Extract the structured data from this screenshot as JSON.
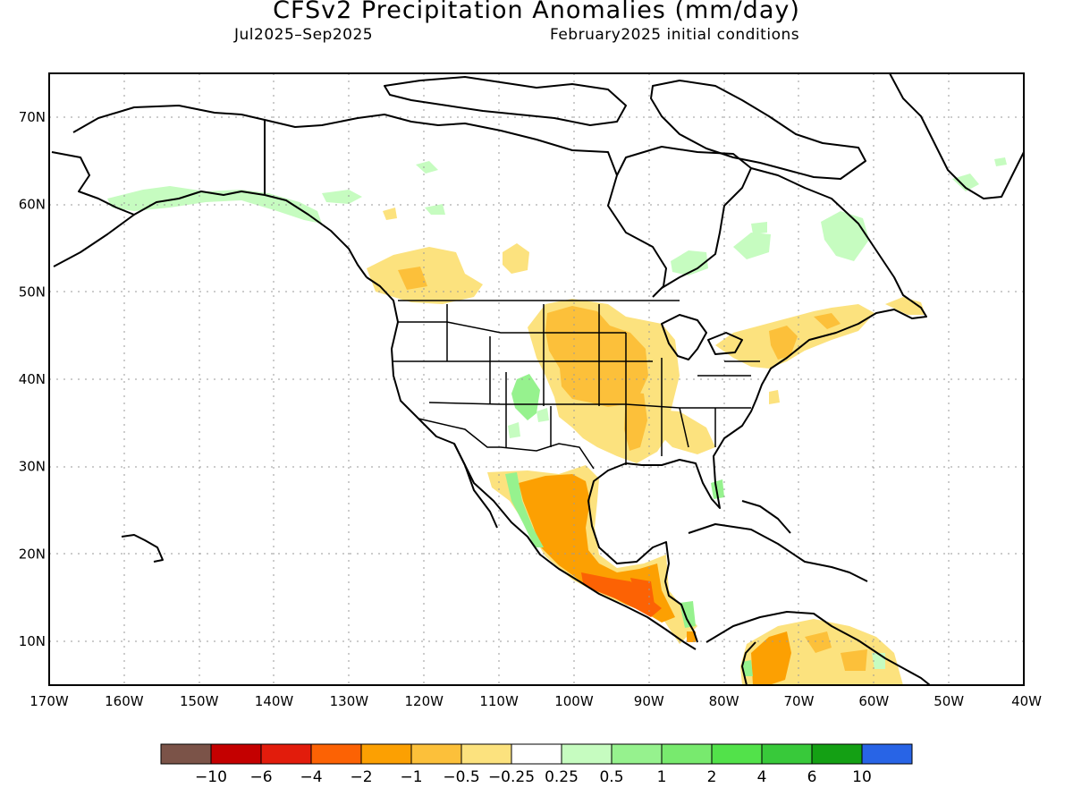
{
  "title": "CFSv2 Precipitation Anomalies (mm/day)",
  "period": "Jul2025–Sep2025",
  "initial_conditions": "February2025 initial conditions",
  "map": {
    "lon_range": [
      -170,
      -40
    ],
    "lat_range": [
      5,
      75
    ],
    "lon_ticks": [
      {
        "value": -170,
        "label": "170W"
      },
      {
        "value": -160,
        "label": "160W"
      },
      {
        "value": -150,
        "label": "150W"
      },
      {
        "value": -140,
        "label": "140W"
      },
      {
        "value": -130,
        "label": "130W"
      },
      {
        "value": -120,
        "label": "120W"
      },
      {
        "value": -110,
        "label": "110W"
      },
      {
        "value": -100,
        "label": "100W"
      },
      {
        "value": -90,
        "label": "90W"
      },
      {
        "value": -80,
        "label": "80W"
      },
      {
        "value": -70,
        "label": "70W"
      },
      {
        "value": -60,
        "label": "60W"
      },
      {
        "value": -50,
        "label": "50W"
      },
      {
        "value": -40,
        "label": "40W"
      }
    ],
    "lat_ticks": [
      {
        "value": 70,
        "label": "70N"
      },
      {
        "value": 60,
        "label": "60N"
      },
      {
        "value": 50,
        "label": "50N"
      },
      {
        "value": 40,
        "label": "40N"
      },
      {
        "value": 30,
        "label": "30N"
      },
      {
        "value": 20,
        "label": "20N"
      },
      {
        "value": 10,
        "label": "10N"
      }
    ],
    "grid": true
  },
  "colorbar": {
    "colors": [
      "#7b5348",
      "#c40000",
      "#e21c0c",
      "#fc6204",
      "#fca002",
      "#fcc03a",
      "#fce27e",
      "#ffffff",
      "#c6fcc0",
      "#96f28e",
      "#78ea6e",
      "#52e24a",
      "#38c93a",
      "#14a014",
      "#2864e6"
    ],
    "labels": [
      "−10",
      "−6",
      "−4",
      "−2",
      "−1",
      "−0.5",
      "−0.25",
      "0.25",
      "0.5",
      "1",
      "2",
      "4",
      "6",
      "10"
    ]
  }
}
